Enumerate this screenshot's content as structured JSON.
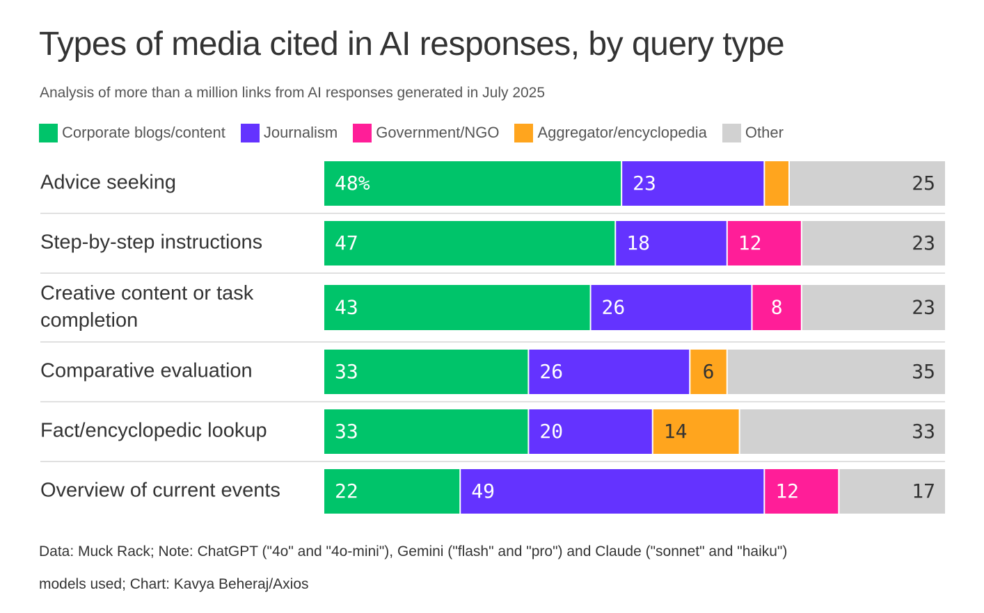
{
  "title": "Types of media cited in AI responses, by query type",
  "subtitle": "Analysis of more than a million links from AI responses generated in July 2025",
  "legend": [
    {
      "name": "Corporate blogs/content",
      "color": "#00C46A"
    },
    {
      "name": "Journalism",
      "color": "#6433FF"
    },
    {
      "name": "Government/NGO",
      "color": "#FF1E98"
    },
    {
      "name": "Aggregator/encyclopedia",
      "color": "#FFA51E"
    },
    {
      "name": "Other",
      "color": "#D1D1D1"
    }
  ],
  "footer": {
    "line1": "Data: Muck Rack; Note: ChatGPT (\"4o\" and \"4o-mini\"), Gemini (\"flash\" and \"pro\") and Claude (\"sonnet\" and \"haiku\")",
    "line2": "models used; Chart: Kavya Beheraj/Axios"
  },
  "chart_data": {
    "type": "bar",
    "orientation": "horizontal",
    "stacked": true,
    "unit": "%",
    "xlim": [
      0,
      100
    ],
    "grid": false,
    "legend_position": "top",
    "categories": [
      [
        "Advice seeking"
      ],
      [
        "Step-by-step instructions"
      ],
      [
        "Creative content or task",
        "completion"
      ],
      [
        "Comparative evaluation"
      ],
      [
        "Fact/encyclopedic lookup"
      ],
      [
        "Overview of current events"
      ]
    ],
    "series": [
      {
        "name": "Corporate blogs/content",
        "color": "#00C46A",
        "label_color": "#ffffff",
        "values": [
          48,
          47,
          43,
          33,
          33,
          22
        ],
        "labels": [
          "48%",
          "47",
          "43",
          "33",
          "33",
          "22"
        ]
      },
      {
        "name": "Journalism",
        "color": "#6433FF",
        "label_color": "#ffffff",
        "values": [
          23,
          18,
          26,
          26,
          20,
          49
        ],
        "labels": [
          "23",
          "18",
          "26",
          "26",
          "20",
          "49"
        ]
      },
      {
        "name": "Government/NGO",
        "color": "#FF1E98",
        "label_color": "#ffffff",
        "values": [
          0,
          12,
          8,
          0,
          0,
          12
        ],
        "labels": [
          "",
          "12",
          "8",
          "",
          "",
          "12"
        ]
      },
      {
        "name": "Aggregator/encyclopedia",
        "color": "#FFA51E",
        "label_color": "#333333",
        "values": [
          4,
          0,
          0,
          6,
          14,
          0
        ],
        "labels": [
          "",
          "",
          "",
          "6",
          "14",
          ""
        ]
      },
      {
        "name": "Other",
        "color": "#D1D1D1",
        "label_color": "#333333",
        "values": [
          25,
          23,
          23,
          35,
          33,
          17
        ],
        "labels": [
          "25",
          "23",
          "23",
          "35",
          "33",
          "17"
        ]
      }
    ]
  }
}
